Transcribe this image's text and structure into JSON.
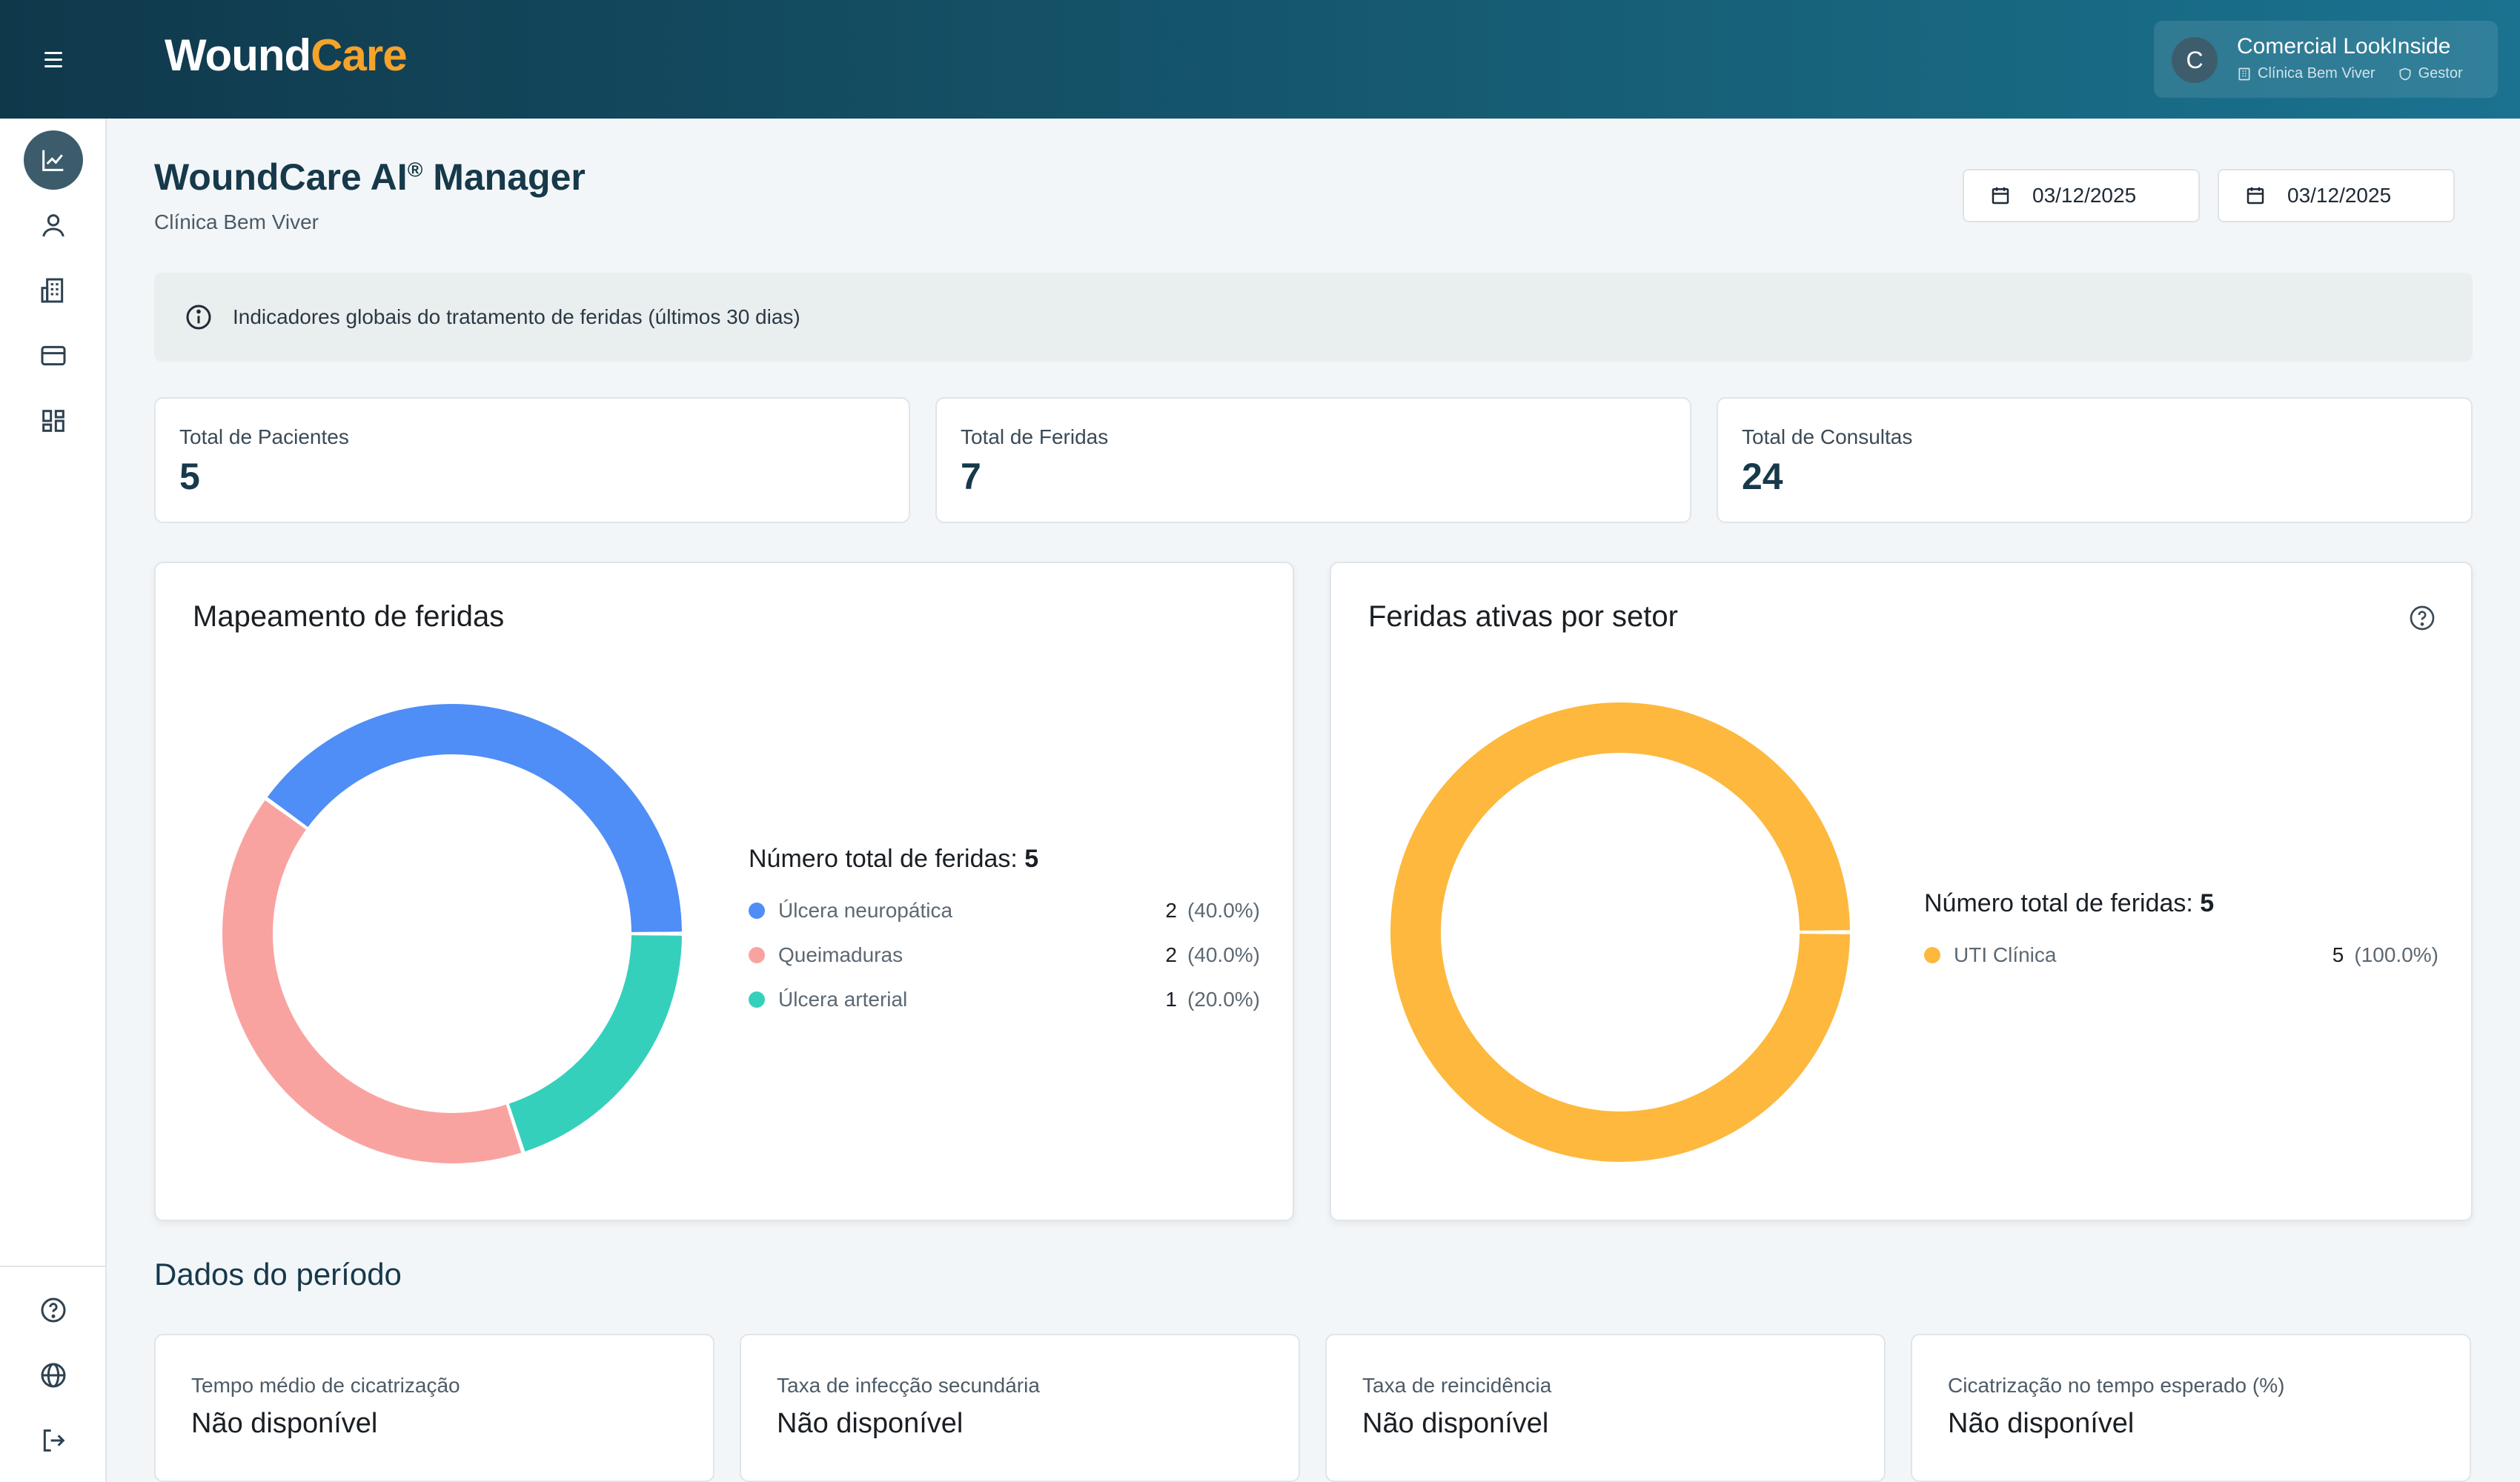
{
  "brand": {
    "part1": "Wound",
    "part2": "Care"
  },
  "user": {
    "initial": "C",
    "name": "Comercial LookInside",
    "clinic": "Clínica Bem Viver",
    "role": "Gestor"
  },
  "sidebar": {
    "items": [
      {
        "icon": "chart-line-icon",
        "active": true
      },
      {
        "icon": "user-icon"
      },
      {
        "icon": "building-icon"
      },
      {
        "icon": "credit-card-icon"
      },
      {
        "icon": "dashboard-grid-icon"
      }
    ],
    "bottom": [
      {
        "icon": "help-circle-icon"
      },
      {
        "icon": "globe-icon"
      },
      {
        "icon": "logout-icon"
      }
    ]
  },
  "header": {
    "title": "WoundCare AI",
    "title_mark": "®",
    "title_suffix": " Manager",
    "subtitle": "Clínica Bem Viver",
    "date_start": "03/12/2025",
    "date_end": "03/12/2025"
  },
  "info": {
    "text": "Indicadores globais do tratamento de feridas (últimos 30 dias)"
  },
  "stats": [
    {
      "label": "Total de Pacientes",
      "value": "5"
    },
    {
      "label": "Total de Feridas",
      "value": "7"
    },
    {
      "label": "Total de Consultas",
      "value": "24"
    }
  ],
  "chart_data": [
    {
      "type": "pie",
      "title": "Mapeamento de feridas",
      "total_label": "Número total de feridas:",
      "total": "5",
      "categories": [
        "Úlcera neuropática",
        "Queimaduras",
        "Úlcera arterial"
      ],
      "values": [
        2,
        2,
        1
      ],
      "value_labels": [
        "2",
        "2",
        "1"
      ],
      "percent_labels": [
        "(40.0%)",
        "(40.0%)",
        "(20.0%)"
      ],
      "colors": [
        "#4f8ef7",
        "#f9a3a0",
        "#35d0bc"
      ]
    },
    {
      "type": "pie",
      "title": "Feridas ativas por setor",
      "total_label": "Número total de feridas:",
      "total": "5",
      "categories": [
        "UTI Clínica"
      ],
      "values": [
        5
      ],
      "value_labels": [
        "5"
      ],
      "percent_labels": [
        "(100.0%)"
      ],
      "colors": [
        "#fdb83d"
      ]
    }
  ],
  "period": {
    "title": "Dados do período",
    "kpis": [
      {
        "label": "Tempo médio de cicatrização",
        "value": "Não disponível"
      },
      {
        "label": "Taxa de infecção secundária",
        "value": "Não disponível"
      },
      {
        "label": "Taxa de reincidência",
        "value": "Não disponível"
      },
      {
        "label": "Cicatrização no tempo esperado (%)",
        "value": "Não disponível"
      }
    ]
  }
}
